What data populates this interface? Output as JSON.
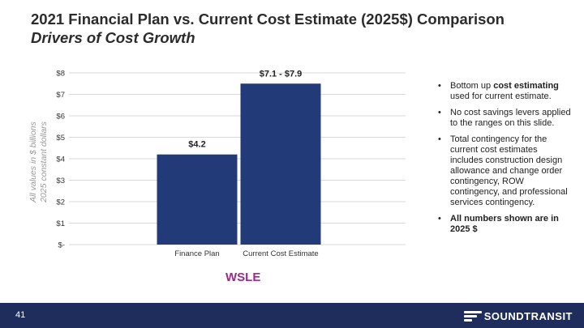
{
  "slide": {
    "title": "2021 Financial Plan vs. Current Cost Estimate (2025$) Comparison",
    "subtitle": "Drivers of Cost Growth",
    "page_number": "41",
    "section_label": "WSLE",
    "logo_text": "SOUNDTRANSIT"
  },
  "axis_note": {
    "line1": "All values in $ billions",
    "line2": "2025 constant dollars"
  },
  "bullets": [
    {
      "parts": [
        {
          "text": "Bottom up ",
          "bold": false
        },
        {
          "text": "cost estimating",
          "bold": true
        },
        {
          "text": " used for current estimate.",
          "bold": false
        }
      ]
    },
    {
      "parts": [
        {
          "text": "No cost savings levers applied to the ranges on this slide.",
          "bold": false
        }
      ]
    },
    {
      "parts": [
        {
          "text": "Total contingency for the current cost estimates includes construction design allowance and change order contingency, ROW contingency, and professional services contingency.",
          "bold": false
        }
      ]
    },
    {
      "parts": [
        {
          "text": "All numbers shown are in 2025 $",
          "bold": true
        }
      ]
    }
  ],
  "chart_data": {
    "type": "bar",
    "categories": [
      "Finance Plan",
      "Current Cost Estimate"
    ],
    "values": [
      4.2,
      7.5
    ],
    "data_labels": [
      "$4.2",
      "$7.1 - $7.9"
    ],
    "ylim": [
      0,
      8
    ],
    "yticks": [
      0,
      1,
      2,
      3,
      4,
      5,
      6,
      7,
      8
    ],
    "ytick_labels": [
      "$-",
      "$1",
      "$2",
      "$3",
      "$4",
      "$5",
      "$6",
      "$7",
      "$8"
    ],
    "grid": true,
    "bar_color": "#223a78",
    "grid_color": "#d9d9d9",
    "accent_color": "#a3268f",
    "footer_color": "#1f2d5c"
  }
}
